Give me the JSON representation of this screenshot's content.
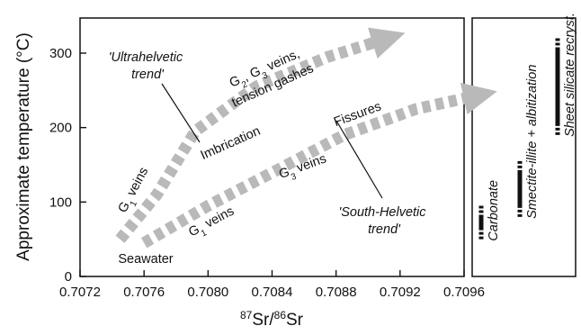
{
  "chart_data": {
    "type": "scatter",
    "xlabel_prefix_sup": "87",
    "xlabel_mid": "Sr/",
    "xlabel_sup2": "86",
    "xlabel_end": "Sr",
    "ylabel": "Approximate temperature (°C)",
    "xlim": [
      0.7072,
      0.7096
    ],
    "ylim": [
      0,
      350
    ],
    "x_ticks": [
      "0.7072",
      "0.7076",
      "0.7080",
      "0.7084",
      "0.7088",
      "0.7092",
      "0.7096"
    ],
    "y_ticks": [
      "0",
      "100",
      "200",
      "300"
    ],
    "grid": false,
    "series": [
      {
        "name": "'Ultrahelvetic trend'",
        "points": [
          [
            0.70745,
            50
          ],
          [
            0.70768,
            110
          ],
          [
            0.70792,
            195
          ],
          [
            0.7083,
            255
          ],
          [
            0.70875,
            295
          ],
          [
            0.70905,
            315
          ]
        ]
      },
      {
        "name": "'South-Helvetic trend'",
        "points": [
          [
            0.7076,
            45
          ],
          [
            0.708,
            95
          ],
          [
            0.70845,
            145
          ],
          [
            0.70885,
            190
          ],
          [
            0.7093,
            225
          ],
          [
            0.70962,
            240
          ]
        ]
      }
    ],
    "annotations": {
      "ultra_trend_line1": "'Ultrahelvetic",
      "ultra_trend_line2": "trend'",
      "south_trend_line1": "'South-Helvetic",
      "south_trend_line2": "trend'",
      "g2g3_pre": "G",
      "g2g3_sub1": "2",
      "g2g3_mid": ", G",
      "g2g3_sub2": "3",
      "g2g3_post": " veins,",
      "tension": "tension gashes",
      "g1_upper_pre": "G",
      "g1_upper_sub": "1",
      "g1_upper_post": " veins",
      "imbrication": "Imbrication",
      "fissures": "Fissures",
      "g3_pre": "G",
      "g3_sub": "3",
      "g3_post": " veins",
      "g1_lower_pre": "G",
      "g1_lower_sub": "1",
      "g1_lower_post": " veins",
      "seawater": "Seawater"
    },
    "side_panel": {
      "bars": [
        {
          "label": "Carbonate",
          "min": 50,
          "max": 95
        },
        {
          "label": "Smectite-illite + albitization",
          "min": 80,
          "max": 155
        },
        {
          "label": "Sheet silicate recryst.",
          "min": 190,
          "max": 320
        }
      ]
    }
  }
}
